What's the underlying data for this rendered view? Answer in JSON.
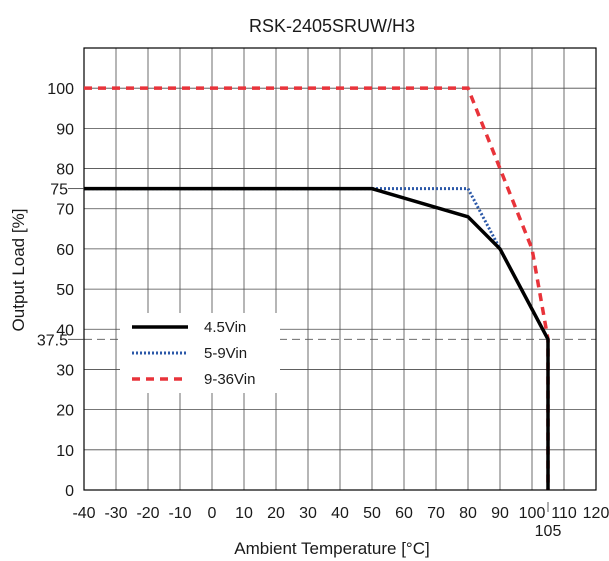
{
  "chart_data": {
    "type": "line",
    "title": "RSK-2405SRUW/H3",
    "xlabel": "Ambient Temperature [°C]",
    "ylabel": "Output Load [%]",
    "xlim": [
      -40,
      120
    ],
    "ylim": [
      0,
      110
    ],
    "x_ticks": [
      -40,
      -30,
      -20,
      -10,
      0,
      10,
      20,
      30,
      40,
      50,
      60,
      70,
      80,
      90,
      100,
      110,
      120
    ],
    "y_ticks": [
      0,
      10,
      20,
      30,
      40,
      50,
      60,
      70,
      80,
      90,
      100
    ],
    "extra_x_tick": {
      "value": 105,
      "label": "105"
    },
    "extra_y_ticks": [
      {
        "value": 75,
        "label": "75"
      },
      {
        "value": 37.5,
        "label": "37.5"
      }
    ],
    "grid": true,
    "reference_lines": [
      {
        "axis": "y",
        "value": 37.5,
        "style": "dashed"
      }
    ],
    "legend": {
      "position": "lower-left"
    },
    "series": [
      {
        "name": "4.5Vin",
        "color": "#000000",
        "dash": "solid",
        "points": [
          [
            -40,
            75
          ],
          [
            50,
            75
          ],
          [
            80,
            68
          ],
          [
            90,
            60
          ],
          [
            105,
            37.5
          ],
          [
            105,
            0
          ]
        ]
      },
      {
        "name": "5-9Vin",
        "color": "#2b58a8",
        "dash": "dotted",
        "points": [
          [
            -40,
            75
          ],
          [
            80,
            75
          ],
          [
            90,
            60
          ],
          [
            105,
            37.5
          ],
          [
            105,
            0
          ]
        ]
      },
      {
        "name": "9-36Vin",
        "color": "#e8333a",
        "dash": "dashed",
        "points": [
          [
            -40,
            100
          ],
          [
            80,
            100
          ],
          [
            100,
            60
          ],
          [
            105,
            37.5
          ],
          [
            105,
            0
          ]
        ]
      }
    ]
  }
}
